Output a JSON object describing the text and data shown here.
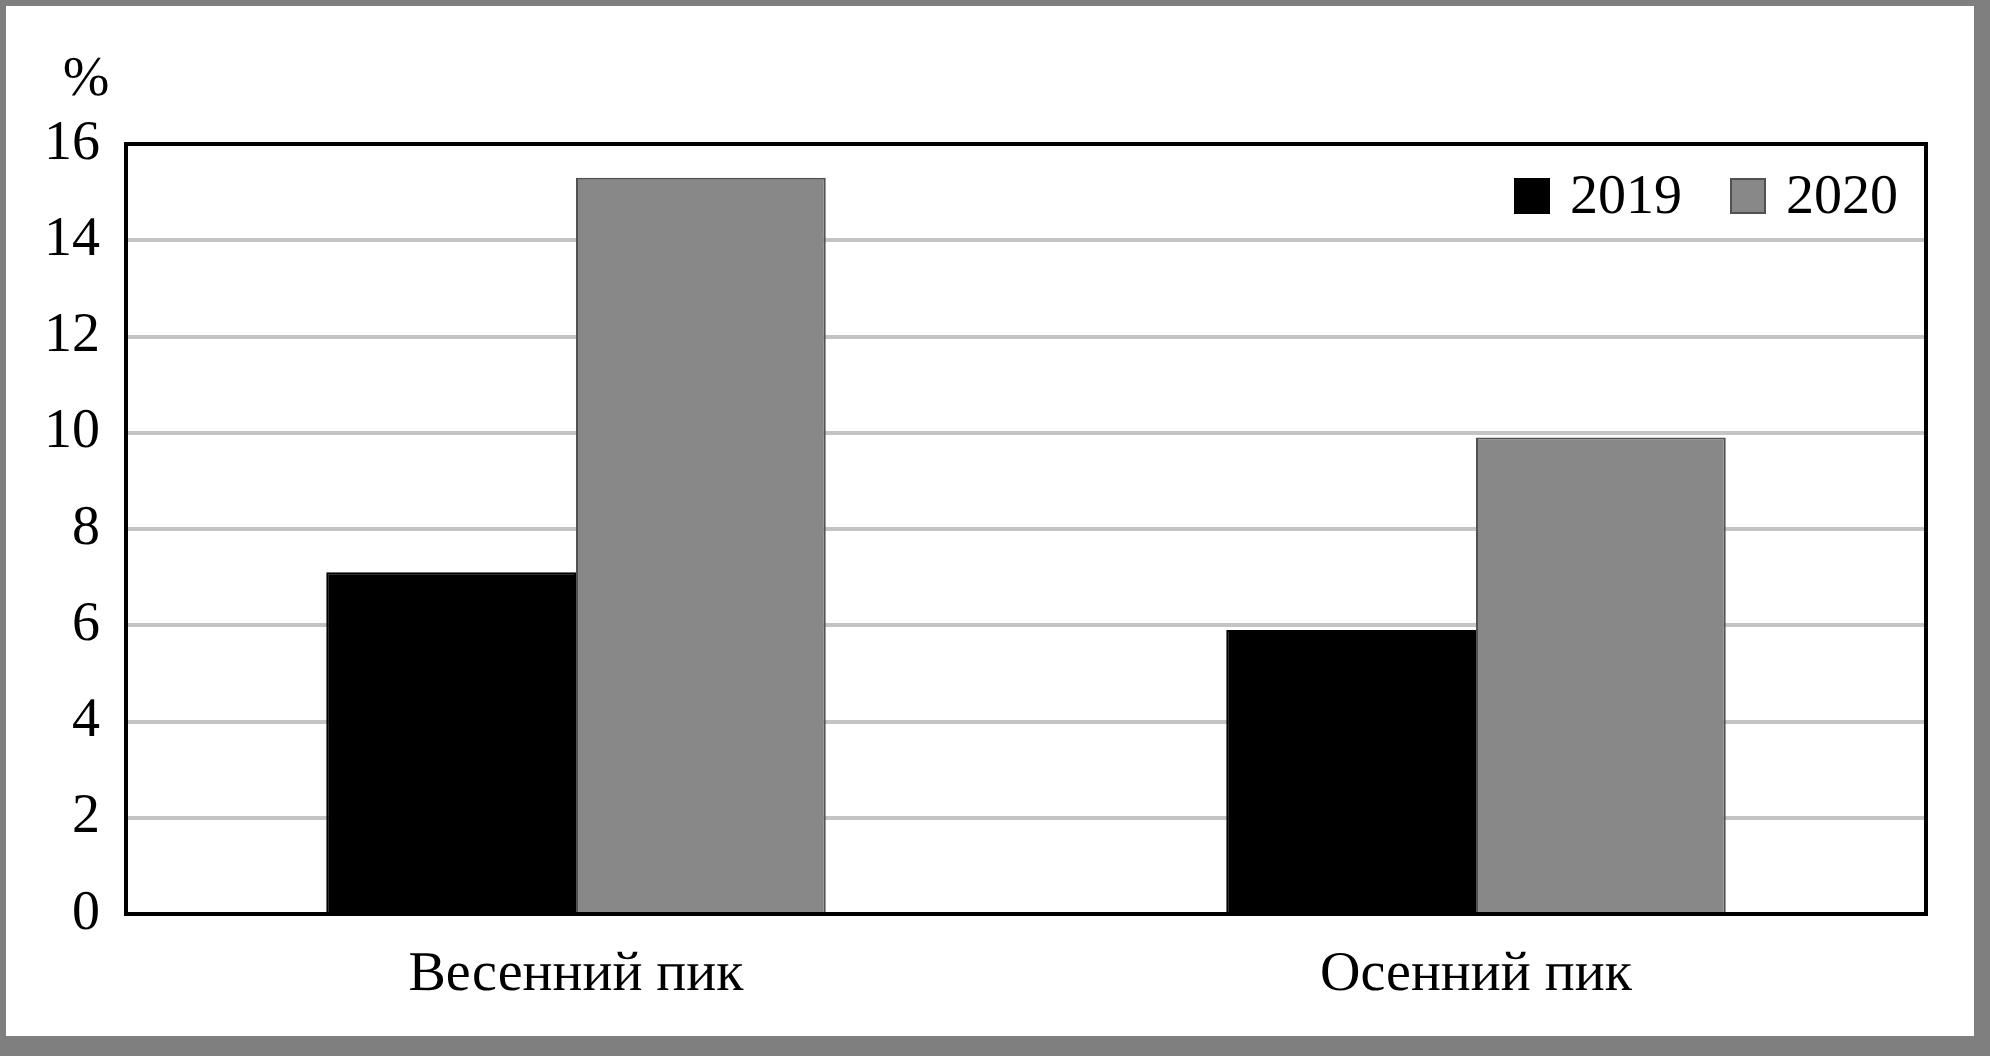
{
  "chart_data": {
    "type": "bar",
    "ylabel": "%",
    "categories": [
      "Весенний пик",
      "Осенний пик"
    ],
    "series": [
      {
        "name": "2019",
        "color": "#000000",
        "values": [
          7.1,
          5.9
        ]
      },
      {
        "name": "2020",
        "color": "#888888",
        "values": [
          15.3,
          9.9
        ]
      }
    ],
    "ylim": [
      0,
      16
    ],
    "yticks": [
      0,
      2,
      4,
      6,
      8,
      10,
      12,
      14,
      16
    ],
    "grid": "y",
    "legend": "top right"
  }
}
